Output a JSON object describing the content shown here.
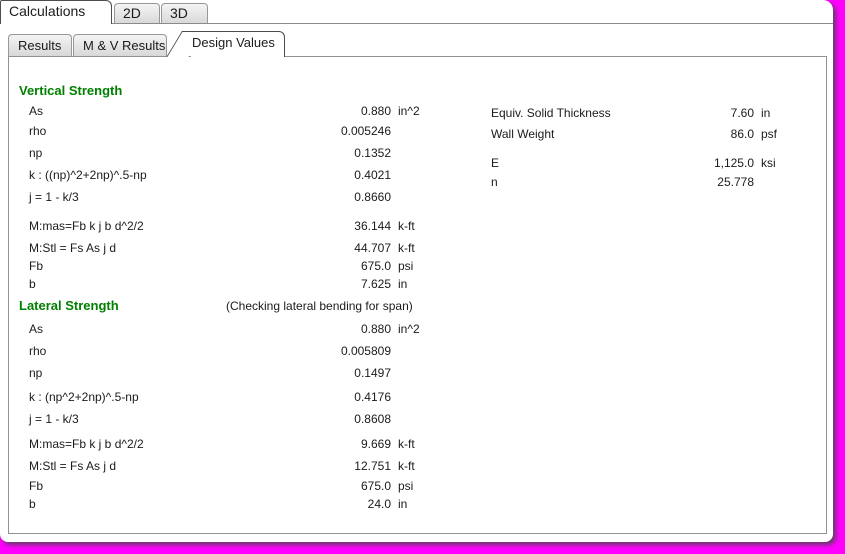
{
  "main_tabs": {
    "items": [
      {
        "label": "Calculations",
        "active": true
      },
      {
        "label": "2D",
        "active": false
      },
      {
        "label": "3D",
        "active": false
      }
    ]
  },
  "sub_tabs": {
    "items": [
      {
        "label": "Results",
        "active": false
      },
      {
        "label": "M & V Results",
        "active": false
      },
      {
        "label": "Design Values",
        "active": true
      }
    ]
  },
  "design_values": {
    "vertical": {
      "heading": "Vertical Strength",
      "rows": [
        {
          "label": "As",
          "value": "0.880",
          "unit": "in^2"
        },
        {
          "label": "rho",
          "value": "0.005246",
          "unit": ""
        },
        {
          "label": "np",
          "value": "0.1352",
          "unit": ""
        },
        {
          "label": "k : ((np)^2+2np)^.5-np",
          "value": "0.4021",
          "unit": ""
        },
        {
          "label": "j = 1 - k/3",
          "value": "0.8660",
          "unit": ""
        },
        {
          "label": "M:mas=Fb k j b d^2/2",
          "value": "36.144",
          "unit": "k-ft"
        },
        {
          "label": "M:Stl = Fs As j d",
          "value": "44.707",
          "unit": "k-ft"
        },
        {
          "label": "Fb",
          "value": "675.0",
          "unit": "psi"
        },
        {
          "label": "b",
          "value": "7.625",
          "unit": "in"
        }
      ]
    },
    "lateral": {
      "heading": "Lateral Strength",
      "note": "(Checking lateral bending for span)",
      "rows": [
        {
          "label": "As",
          "value": "0.880",
          "unit": "in^2"
        },
        {
          "label": "rho",
          "value": "0.005809",
          "unit": ""
        },
        {
          "label": "np",
          "value": "0.1497",
          "unit": ""
        },
        {
          "label": "k : (np^2+2np)^.5-np",
          "value": "0.4176",
          "unit": ""
        },
        {
          "label": "j = 1 - k/3",
          "value": "0.8608",
          "unit": ""
        },
        {
          "label": "M:mas=Fb k j b d^2/2",
          "value": "9.669",
          "unit": "k-ft"
        },
        {
          "label": "M:Stl = Fs As j d",
          "value": "12.751",
          "unit": "k-ft"
        },
        {
          "label": "Fb",
          "value": "675.0",
          "unit": "psi"
        },
        {
          "label": "b",
          "value": "24.0",
          "unit": "in"
        }
      ]
    },
    "properties": {
      "rows": [
        {
          "label": "Equiv. Solid Thickness",
          "value": "7.60",
          "unit": "in"
        },
        {
          "label": "Wall Weight",
          "value": "86.0",
          "unit": "psf"
        },
        {
          "label": "E",
          "value": "1,125.0",
          "unit": "ksi"
        },
        {
          "label": "n",
          "value": "25.778",
          "unit": ""
        }
      ]
    }
  },
  "colors": {
    "heading_green": "#008000",
    "frame_magenta": "#FF00FF",
    "panel_border": "#919191"
  }
}
